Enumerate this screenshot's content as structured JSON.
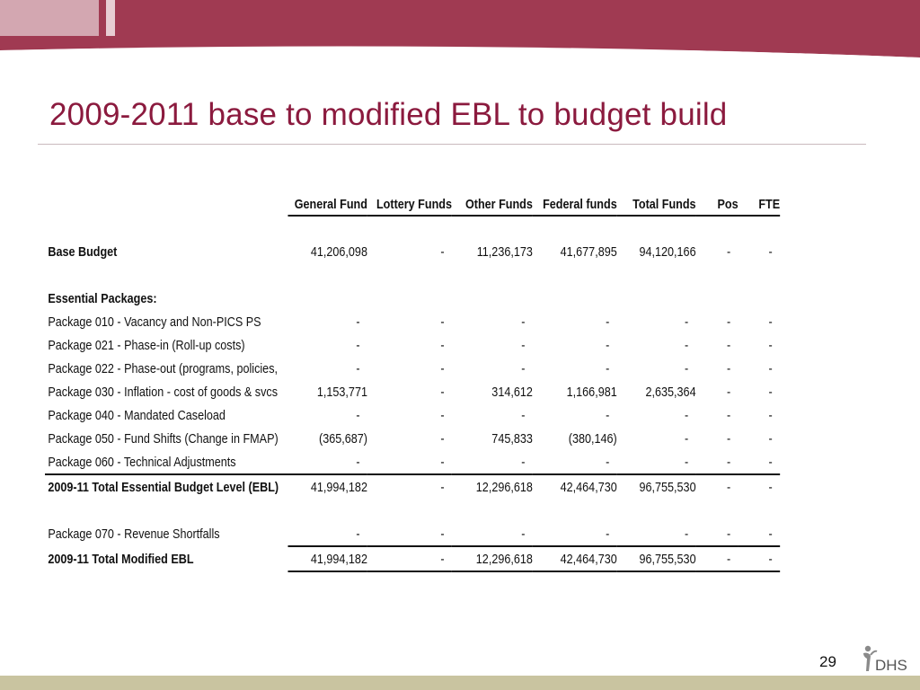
{
  "slide": {
    "title": "2009-2011 base to modified EBL to budget build",
    "page_number": "29",
    "logo_text": "DHS"
  },
  "table": {
    "headers": [
      "General Fund",
      "Lottery Funds",
      "Other Funds",
      "Federal funds",
      "Total Funds",
      "Pos",
      "FTE"
    ],
    "base_budget": {
      "label": "Base Budget",
      "values": [
        "41,206,098",
        "-",
        "11,236,173",
        "41,677,895",
        "94,120,166",
        "-",
        "-"
      ]
    },
    "essential_heading": "Essential Packages:",
    "packages": [
      {
        "label": "Package 010 - Vacancy and Non-PICS PS",
        "values": [
          "-",
          "-",
          "-",
          "-",
          "-",
          "-",
          "-"
        ]
      },
      {
        "label": "Package 021 - Phase-in (Roll-up costs)",
        "values": [
          "-",
          "-",
          "-",
          "-",
          "-",
          "-",
          "-"
        ]
      },
      {
        "label": "Package 022 - Phase-out (programs, policies,",
        "values": [
          "-",
          "-",
          "-",
          "-",
          "-",
          "-",
          "-"
        ]
      },
      {
        "label": "Package 030 - Inflation - cost of goods & svcs",
        "values": [
          "1,153,771",
          "-",
          "314,612",
          "1,166,981",
          "2,635,364",
          "-",
          "-"
        ]
      },
      {
        "label": "Package 040 - Mandated Caseload",
        "values": [
          "-",
          "-",
          "-",
          "-",
          "-",
          "-",
          "-"
        ]
      },
      {
        "label": "Package 050 - Fund Shifts (Change in FMAP)",
        "values": [
          "(365,687)",
          "-",
          "745,833",
          "(380,146)",
          "-",
          "-",
          "-"
        ]
      },
      {
        "label": "Package 060 - Technical Adjustments",
        "values": [
          "-",
          "-",
          "-",
          "-",
          "-",
          "-",
          "-"
        ]
      }
    ],
    "ebl_total": {
      "label": "2009-11 Total Essential Budget Level (EBL)",
      "values": [
        "41,994,182",
        "-",
        "12,296,618",
        "42,464,730",
        "96,755,530",
        "-",
        "-"
      ]
    },
    "package_070": {
      "label": "Package 070 - Revenue Shortfalls",
      "values": [
        "-",
        "-",
        "-",
        "-",
        "-",
        "-",
        "-"
      ]
    },
    "modified_total": {
      "label": "2009-11 Total Modified EBL",
      "values": [
        "41,994,182",
        "-",
        "12,296,618",
        "42,464,730",
        "96,755,530",
        "-",
        "-"
      ]
    }
  },
  "colors": {
    "accent": "#a03a52",
    "title": "#8b1a3e",
    "footer_band": "#c9c4a0"
  }
}
